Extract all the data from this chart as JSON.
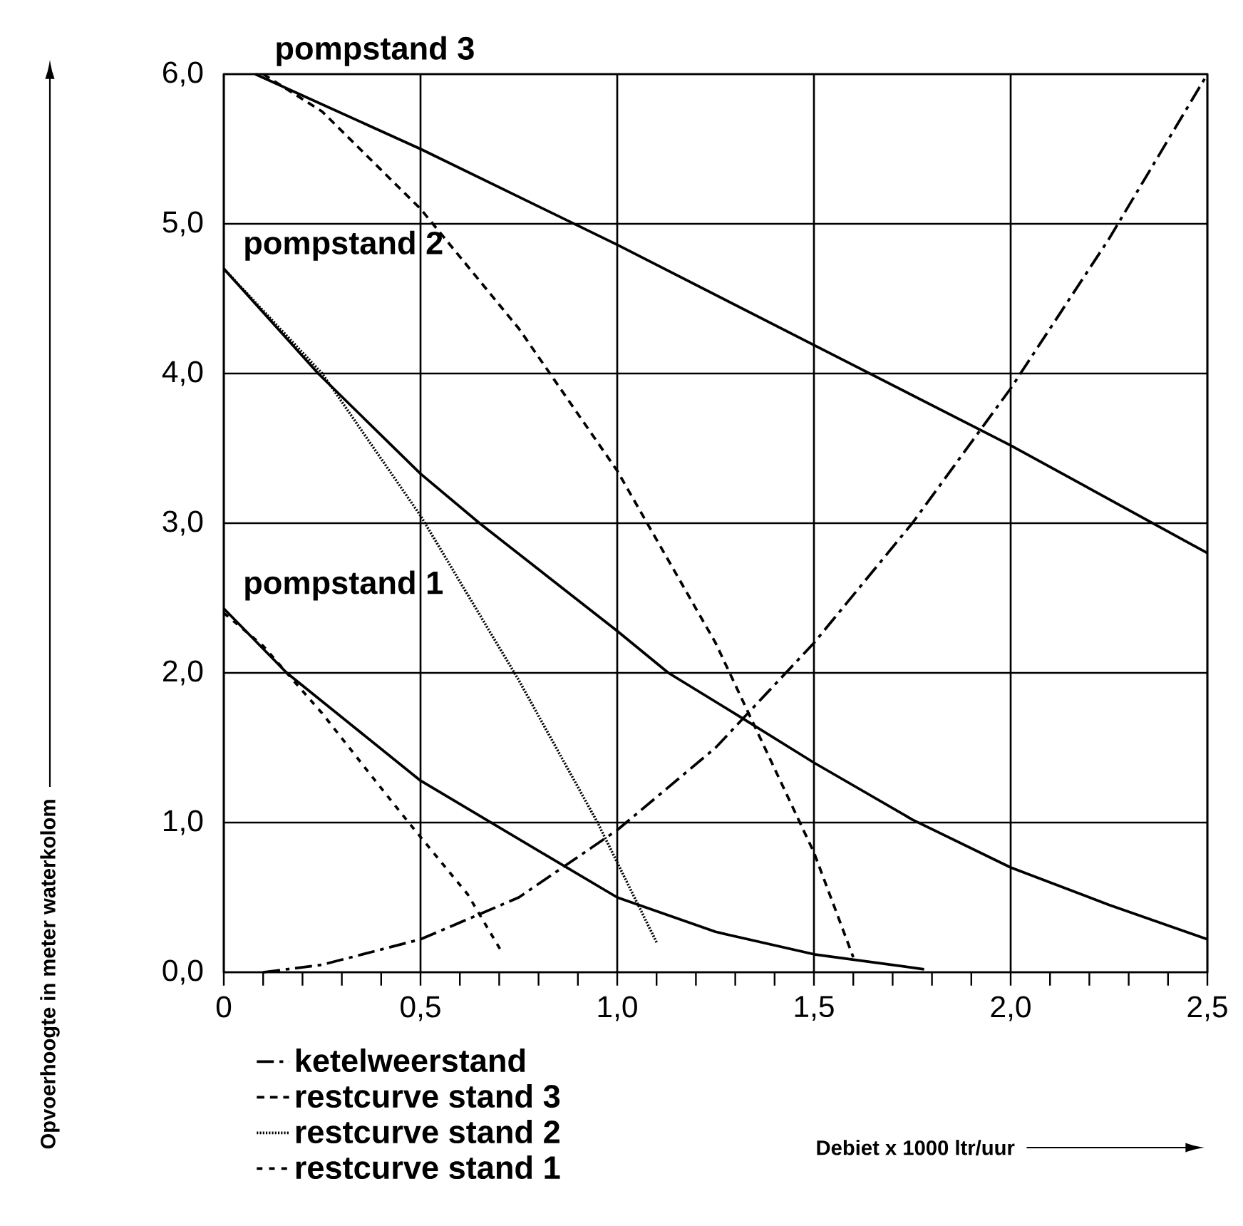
{
  "chart_data": {
    "type": "line",
    "annotations": [
      "Debiet x 1000 ltr/uur"
    ],
    "ylabel": "Opvoerhoogte in meter waterkolom",
    "xlim": [
      0,
      2.5
    ],
    "ylim": [
      0,
      6
    ],
    "xticks": [
      {
        "value": 0,
        "label": "0"
      },
      {
        "value": 0.1,
        "label": null
      },
      {
        "value": 0.2,
        "label": null
      },
      {
        "value": 0.3,
        "label": null
      },
      {
        "value": 0.4,
        "label": null
      },
      {
        "value": 0.5,
        "label": "0,5"
      },
      {
        "value": 0.6,
        "label": null
      },
      {
        "value": 0.7,
        "label": null
      },
      {
        "value": 0.8,
        "label": null
      },
      {
        "value": 0.9,
        "label": null
      },
      {
        "value": 1.0,
        "label": "1,0"
      },
      {
        "value": 1.1,
        "label": null
      },
      {
        "value": 1.2,
        "label": null
      },
      {
        "value": 1.3,
        "label": null
      },
      {
        "value": 1.4,
        "label": null
      },
      {
        "value": 1.5,
        "label": "1,5"
      },
      {
        "value": 1.6,
        "label": null
      },
      {
        "value": 1.7,
        "label": null
      },
      {
        "value": 1.8,
        "label": null
      },
      {
        "value": 1.9,
        "label": null
      },
      {
        "value": 2.0,
        "label": "2,0"
      },
      {
        "value": 2.1,
        "label": null
      },
      {
        "value": 2.2,
        "label": null
      },
      {
        "value": 2.3,
        "label": null
      },
      {
        "value": 2.4,
        "label": null
      },
      {
        "value": 2.5,
        "label": "2,5"
      }
    ],
    "yticks": [
      {
        "value": 0,
        "label": "0,0"
      },
      {
        "value": 1,
        "label": "1,0"
      },
      {
        "value": 2,
        "label": "2,0"
      },
      {
        "value": 3,
        "label": "3,0"
      },
      {
        "value": 4,
        "label": "4,0"
      },
      {
        "value": 5,
        "label": "5,0"
      },
      {
        "value": 6,
        "label": "6,0"
      }
    ],
    "grid": true,
    "legend": "bottom left",
    "marker": "none",
    "series": [
      {
        "name": "pompstand 3",
        "color": "#000000",
        "line_style": "solid",
        "x": [
          0.08,
          0.5,
          1.0,
          1.5,
          2.0,
          2.5
        ],
        "values": [
          6.0,
          5.5,
          4.86,
          4.19,
          3.52,
          2.8
        ]
      },
      {
        "name": "pompstand 2",
        "color": "#000000",
        "line_style": "solid",
        "x": [
          0,
          0.24,
          0.5,
          0.65,
          1.0,
          1.13,
          1.31,
          1.5,
          1.75,
          2.0,
          2.25,
          2.5
        ],
        "values": [
          4.7,
          4.0,
          3.33,
          3.0,
          2.28,
          2.0,
          1.71,
          1.4,
          1.02,
          0.7,
          0.45,
          0.22
        ]
      },
      {
        "name": "pompstand 1",
        "color": "#000000",
        "line_style": "solid",
        "x": [
          0,
          0.16,
          0.5,
          0.82,
          1.0,
          1.25,
          1.5,
          1.78
        ],
        "values": [
          2.43,
          2.0,
          1.28,
          0.78,
          0.5,
          0.27,
          0.12,
          0.02
        ]
      },
      {
        "name": "ketelweerstand",
        "color": "#000000",
        "line_style": "dashdot",
        "x": [
          0.1,
          0.25,
          0.5,
          0.75,
          1.0,
          1.25,
          1.5,
          1.75,
          2.0,
          2.25,
          2.5
        ],
        "values": [
          0,
          0.05,
          0.22,
          0.5,
          0.95,
          1.5,
          2.2,
          3.0,
          3.9,
          4.9,
          6.0
        ]
      },
      {
        "name": "restcurve stand 3",
        "color": "#000000",
        "line_style": "dashed",
        "x": [
          0.1,
          0.25,
          0.5,
          0.75,
          1.0,
          1.25,
          1.5,
          1.6
        ],
        "values": [
          6.0,
          5.75,
          5.1,
          4.3,
          3.35,
          2.2,
          0.8,
          0.1
        ]
      },
      {
        "name": "restcurve stand 2",
        "color": "#000000",
        "line_style": "dotted",
        "x": [
          0,
          0.25,
          0.5,
          0.75,
          0.95,
          1.1
        ],
        "values": [
          4.7,
          4.0,
          3.05,
          1.95,
          1.0,
          0.2
        ]
      },
      {
        "name": "restcurve stand 1",
        "color": "#000000",
        "line_style": "loosely dashed",
        "x": [
          0,
          0.1,
          0.25,
          0.4,
          0.47,
          0.62,
          0.71
        ],
        "values": [
          2.4,
          2.18,
          1.73,
          1.23,
          1.0,
          0.52,
          0.12
        ]
      }
    ]
  }
}
